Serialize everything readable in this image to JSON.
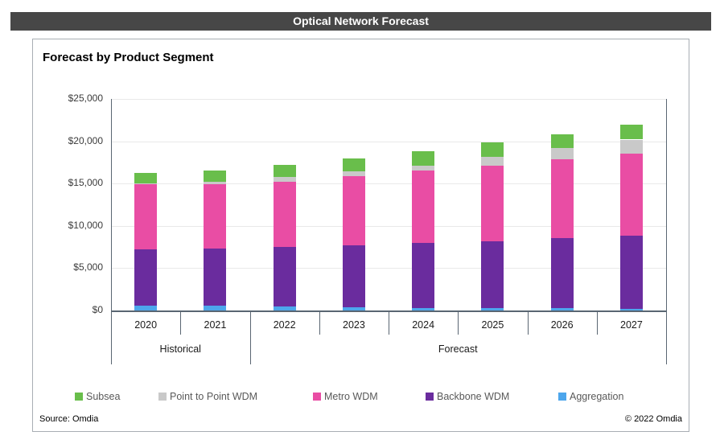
{
  "header": {
    "title": "Optical Network Forecast"
  },
  "panel": {
    "title": "Forecast by Product Segment"
  },
  "footer": {
    "source": "Source: Omdia",
    "copyright": "© 2022 Omdia"
  },
  "chart_data": {
    "type": "bar",
    "stacked": true,
    "title": "Forecast by Product Segment",
    "categories": [
      "2020",
      "2021",
      "2022",
      "2023",
      "2024",
      "2025",
      "2026",
      "2027"
    ],
    "group_labels": [
      {
        "label": "Historical",
        "span": 2
      },
      {
        "label": "Forecast",
        "span": 6
      }
    ],
    "ylim": [
      0,
      25000
    ],
    "y_ticks": [
      "$0",
      "$5,000",
      "$10,000",
      "$15,000",
      "$20,000",
      "$25,000"
    ],
    "grid": true,
    "legend_position": "bottom",
    "series": [
      {
        "name": "Aggregation",
        "color": "#4DA6EC",
        "values": [
          600,
          600,
          450,
          400,
          300,
          250,
          250,
          150
        ]
      },
      {
        "name": "Backbone WDM",
        "color": "#6A2C9E",
        "values": [
          6600,
          6700,
          7050,
          7300,
          7700,
          7950,
          8300,
          8650
        ]
      },
      {
        "name": "Metro WDM",
        "color": "#E94DA4",
        "values": [
          7700,
          7600,
          7750,
          8200,
          8500,
          8900,
          9300,
          9700
        ]
      },
      {
        "name": "Point to Point WDM",
        "color": "#C9C9C9",
        "values": [
          100,
          300,
          550,
          550,
          600,
          1050,
          1350,
          1700
        ]
      },
      {
        "name": "Subsea",
        "color": "#69BE4B",
        "values": [
          1250,
          1300,
          1450,
          1550,
          1750,
          1700,
          1600,
          1800
        ]
      }
    ],
    "legend_order": [
      "Subsea",
      "Point to Point WDM",
      "Metro WDM",
      "Backbone WDM",
      "Aggregation"
    ],
    "totals": [
      16250,
      16500,
      17250,
      18000,
      18850,
      19850,
      20800,
      22000
    ]
  }
}
